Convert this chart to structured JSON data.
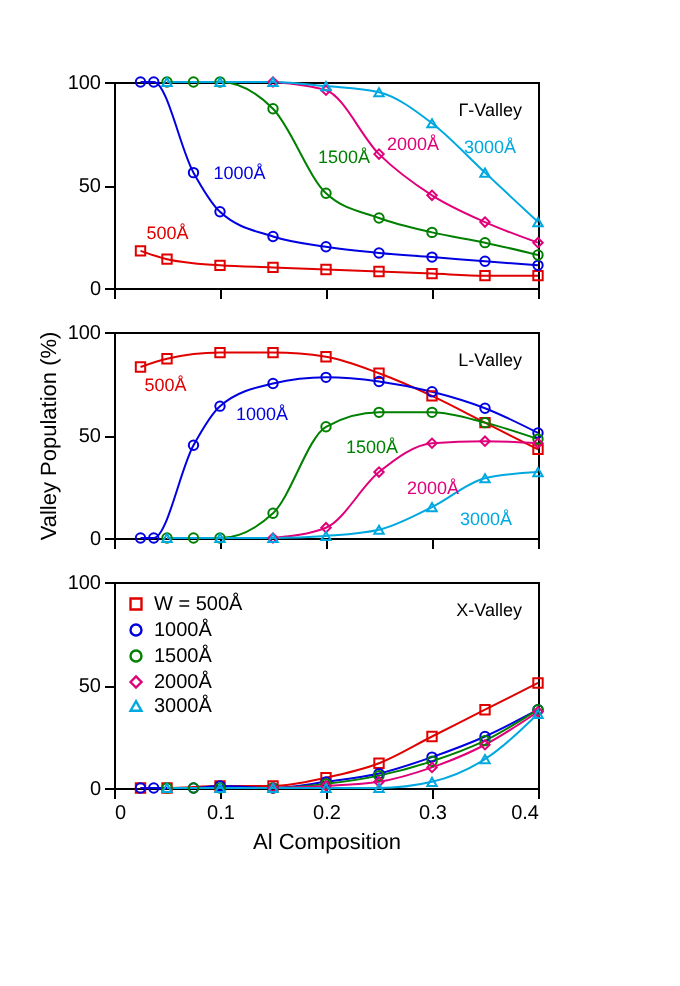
{
  "chart_data": [
    {
      "type": "line",
      "title": "Γ-Valley",
      "xlim": [
        0,
        0.4
      ],
      "xticks": [
        0,
        0.1,
        0.2,
        0.3,
        0.4
      ],
      "ylim": [
        0,
        100
      ],
      "yticks": [
        0,
        50,
        100
      ],
      "tick_labels": "y",
      "grid": false,
      "legend": false,
      "line_style": "solid",
      "series": [
        {
          "name": "500Å",
          "color": "#e00000",
          "marker": "square",
          "x": [
            0.025,
            0.05,
            0.1,
            0.15,
            0.2,
            0.25,
            0.3,
            0.35,
            0.4
          ],
          "values": [
            18,
            14,
            11,
            10,
            9,
            8,
            7,
            6,
            6
          ]
        },
        {
          "name": "1000Å",
          "color": "#0000e0",
          "marker": "circle",
          "x": [
            0.025,
            0.0375,
            0.075,
            0.1,
            0.15,
            0.2,
            0.25,
            0.3,
            0.35,
            0.4
          ],
          "values": [
            100,
            100,
            56,
            37,
            25,
            20,
            17,
            15,
            13,
            11
          ]
        },
        {
          "name": "1500Å",
          "color": "#008000",
          "marker": "circle",
          "x": [
            0.05,
            0.075,
            0.1,
            0.15,
            0.2,
            0.25,
            0.3,
            0.35,
            0.4
          ],
          "values": [
            100,
            100,
            100,
            87,
            46,
            34,
            27,
            22,
            16
          ]
        },
        {
          "name": "2000Å",
          "color": "#e0007a",
          "marker": "diamond",
          "x": [
            0.15,
            0.2,
            0.25,
            0.3,
            0.35,
            0.4
          ],
          "values": [
            100,
            96,
            65,
            45,
            32,
            22
          ]
        },
        {
          "name": "3000Å",
          "color": "#00a8e0",
          "marker": "triangle",
          "x": [
            0.05,
            0.1,
            0.15,
            0.2,
            0.25,
            0.3,
            0.35,
            0.4
          ],
          "values": [
            100,
            100,
            100,
            98,
            95,
            80,
            56,
            32
          ]
        }
      ]
    },
    {
      "type": "line",
      "title": "L-Valley",
      "ylabel": "Valley Population (%)",
      "xlim": [
        0,
        0.4
      ],
      "xticks": [
        0,
        0.1,
        0.2,
        0.3,
        0.4
      ],
      "ylim": [
        0,
        100
      ],
      "yticks": [
        0,
        50,
        100
      ],
      "tick_labels": "y",
      "grid": false,
      "legend": false,
      "line_style": "solid",
      "series": [
        {
          "name": "500Å",
          "color": "#e00000",
          "marker": "square",
          "x": [
            0.025,
            0.05,
            0.1,
            0.15,
            0.2,
            0.25,
            0.3,
            0.35,
            0.4
          ],
          "values": [
            83,
            87,
            90,
            90,
            88,
            80,
            69,
            56,
            43
          ]
        },
        {
          "name": "1000Å",
          "color": "#0000e0",
          "marker": "circle",
          "x": [
            0.025,
            0.0375,
            0.075,
            0.1,
            0.15,
            0.2,
            0.25,
            0.3,
            0.35,
            0.4
          ],
          "values": [
            0,
            0,
            45,
            64,
            75,
            78,
            76,
            71,
            63,
            51
          ]
        },
        {
          "name": "1500Å",
          "color": "#008000",
          "marker": "circle",
          "x": [
            0.05,
            0.075,
            0.1,
            0.15,
            0.2,
            0.25,
            0.3,
            0.35,
            0.4
          ],
          "values": [
            0,
            0,
            0,
            12,
            54,
            61,
            61,
            56,
            48
          ]
        },
        {
          "name": "2000Å",
          "color": "#e0007a",
          "marker": "diamond",
          "x": [
            0.15,
            0.2,
            0.25,
            0.3,
            0.35,
            0.4
          ],
          "values": [
            0,
            5,
            32,
            46,
            47,
            46
          ]
        },
        {
          "name": "3000Å",
          "color": "#00a8e0",
          "marker": "triangle",
          "x": [
            0.05,
            0.1,
            0.15,
            0.2,
            0.25,
            0.3,
            0.35,
            0.4
          ],
          "values": [
            0,
            0,
            0,
            1,
            4,
            15,
            29,
            32
          ]
        }
      ]
    },
    {
      "type": "line",
      "title": "X-Valley",
      "xlabel": "Al Composition",
      "xlim": [
        0,
        0.4
      ],
      "xticks": [
        0,
        0.1,
        0.2,
        0.3,
        0.4
      ],
      "ylim": [
        0,
        100
      ],
      "yticks": [
        0,
        50,
        100
      ],
      "grid": false,
      "legend": "top left",
      "line_style": "solid",
      "series": [
        {
          "name": "W = 500Å",
          "color": "#e00000",
          "marker": "square",
          "x": [
            0.025,
            0.05,
            0.1,
            0.15,
            0.2,
            0.25,
            0.3,
            0.35,
            0.4
          ],
          "values": [
            0,
            0,
            1,
            1,
            5,
            12,
            25,
            38,
            51
          ]
        },
        {
          "name": "1000Å",
          "color": "#0000e0",
          "marker": "circle",
          "x": [
            0.025,
            0.0375,
            0.075,
            0.1,
            0.15,
            0.2,
            0.25,
            0.3,
            0.35,
            0.4
          ],
          "values": [
            0,
            0,
            0,
            1,
            0,
            3,
            7,
            15,
            25,
            38
          ]
        },
        {
          "name": "1500Å",
          "color": "#008000",
          "marker": "circle",
          "x": [
            0.05,
            0.075,
            0.1,
            0.15,
            0.2,
            0.25,
            0.3,
            0.35,
            0.4
          ],
          "values": [
            0,
            0,
            0,
            0,
            2,
            6,
            13,
            23,
            38
          ]
        },
        {
          "name": "2000Å",
          "color": "#e0007a",
          "marker": "diamond",
          "x": [
            0.15,
            0.2,
            0.25,
            0.3,
            0.35,
            0.4
          ],
          "values": [
            0,
            1,
            3,
            10,
            21,
            37
          ]
        },
        {
          "name": "3000Å",
          "color": "#00a8e0",
          "marker": "triangle",
          "x": [
            0.05,
            0.1,
            0.15,
            0.2,
            0.25,
            0.3,
            0.35,
            0.4
          ],
          "values": [
            0,
            0,
            0,
            0,
            0,
            3,
            14,
            36
          ]
        }
      ]
    }
  ]
}
